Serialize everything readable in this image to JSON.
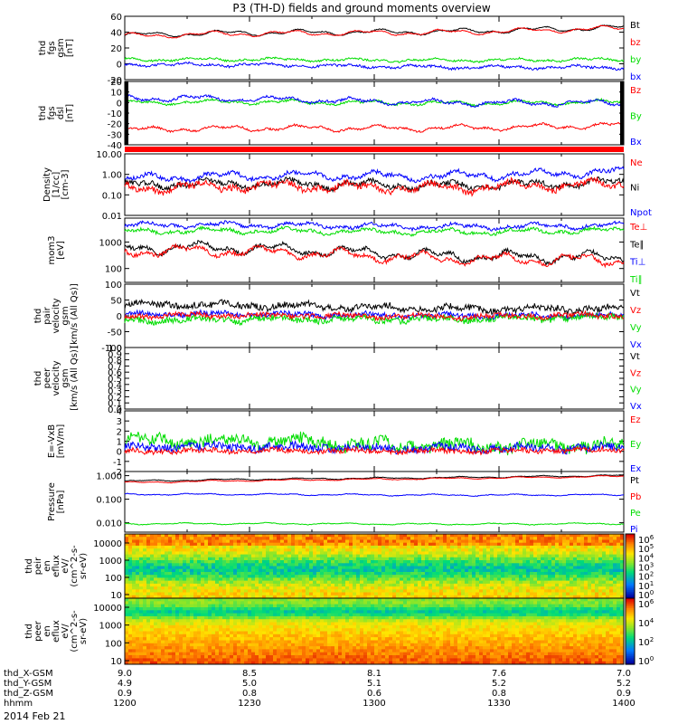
{
  "chart_data": {
    "type": "line",
    "title": "P3 (TH-D) fields and ground moments overview",
    "date_label": "2014 Feb 21",
    "x_range": [
      1200,
      1400
    ],
    "x_ticks": {
      "rows": [
        {
          "label": "thd_X-GSM",
          "values": [
            "9.0",
            "8.5",
            "8.1",
            "7.6",
            "7.0"
          ]
        },
        {
          "label": "thd_Y-GSM",
          "values": [
            "4.9",
            "5.0",
            "5.1",
            "5.2",
            "5.2"
          ]
        },
        {
          "label": "thd_Z-GSM",
          "values": [
            "0.9",
            "0.8",
            "0.6",
            "0.8",
            "0.9"
          ]
        },
        {
          "label": "hhmm",
          "values": [
            "1200",
            "1230",
            "1300",
            "1330",
            "1400"
          ]
        }
      ]
    },
    "panels": [
      {
        "id": "fgs_gsm",
        "ylabel": [
          "thd",
          "fgs",
          "gsm",
          "[nT]"
        ],
        "ylim": [
          -20,
          60
        ],
        "yticks": [
          "60",
          "40",
          "20",
          "0",
          "-20"
        ],
        "legend": [
          {
            "t": "Bt",
            "c": "#000000"
          },
          {
            "t": "bz",
            "c": "#ff0000"
          },
          {
            "t": "by",
            "c": "#00dd00"
          },
          {
            "t": "bx",
            "c": "#0000ff"
          }
        ],
        "series": [
          {
            "name": "Bt",
            "color": "#000000",
            "base": 36,
            "end": 45,
            "amp": 5,
            "noise": 0.6
          },
          {
            "name": "bz",
            "color": "#ff0000",
            "base": 35,
            "end": 44,
            "amp": 5,
            "noise": 0.6
          },
          {
            "name": "by",
            "color": "#00dd00",
            "base": 5,
            "end": 5,
            "amp": 3,
            "noise": 1.2
          },
          {
            "name": "bx",
            "color": "#0000ff",
            "base": -1,
            "end": -5,
            "amp": 3,
            "noise": 1.5
          }
        ]
      },
      {
        "id": "fgs_dsl",
        "ylabel": [
          "thd",
          "fgs",
          "dsl",
          "[nT]"
        ],
        "ylim": [
          -40,
          20
        ],
        "yticks": [
          "20",
          "10",
          "0",
          "-10",
          "-20",
          "-30",
          "-40"
        ],
        "legend": [
          {
            "t": "Bz",
            "c": "#ff0000"
          },
          {
            "t": "By",
            "c": "#00dd00"
          },
          {
            "t": "Bx",
            "c": "#0000ff"
          }
        ],
        "series": [
          {
            "name": "Bz",
            "color": "#ff0000",
            "base": -26,
            "end": -22,
            "amp": 4,
            "noise": 1.0
          },
          {
            "name": "By",
            "color": "#00dd00",
            "base": 0,
            "end": 0,
            "amp": 3,
            "noise": 1.0
          },
          {
            "name": "Bx",
            "color": "#0000ff",
            "base": 4,
            "end": -1,
            "amp": 4,
            "noise": 1.2
          }
        ]
      },
      {
        "id": "density",
        "ylabel": [
          "Density",
          "[1/cc]",
          "[cm-3]"
        ],
        "log": true,
        "ylim": [
          0.01,
          10
        ],
        "yticks": [
          "10.00",
          "1.00",
          "0.10",
          "0.01"
        ],
        "legend": [
          {
            "t": "Ne",
            "c": "#ff0000"
          },
          {
            "t": "Ni",
            "c": "#000000"
          },
          {
            "t": "Npot",
            "c": "#0000ff"
          }
        ],
        "series": [
          {
            "name": "Npot",
            "color": "#0000ff",
            "base": 0.6,
            "end": 1.2,
            "amp": 0.3,
            "noise": 0.2
          },
          {
            "name": "Ni",
            "color": "#000000",
            "base": 0.3,
            "end": 0.35,
            "amp": 0.3,
            "noise": 0.25
          },
          {
            "name": "Ne",
            "color": "#ff0000",
            "base": 0.2,
            "end": 0.3,
            "amp": 0.35,
            "noise": 0.3
          }
        ]
      },
      {
        "id": "temp",
        "ylabel": [
          "mom3",
          "[eV]"
        ],
        "log": true,
        "ylim": [
          30,
          8000
        ],
        "yticks": [
          "1000",
          "100"
        ],
        "legend": [
          {
            "t": "Te⊥",
            "c": "#ff0000"
          },
          {
            "t": "Te∥",
            "c": "#000000"
          },
          {
            "t": "Ti⊥",
            "c": "#0000ff"
          },
          {
            "t": "Ti∥",
            "c": "#00dd00"
          }
        ],
        "series": [
          {
            "name": "Ti⊥",
            "color": "#0000ff",
            "base": 4200,
            "end": 4000,
            "amp": 0.15,
            "noise": 0.12
          },
          {
            "name": "Ti∥",
            "color": "#00dd00",
            "base": 2500,
            "end": 2600,
            "amp": 0.15,
            "noise": 0.12
          },
          {
            "name": "Te∥",
            "color": "#000000",
            "base": 600,
            "end": 220,
            "amp": 0.3,
            "noise": 0.15
          },
          {
            "name": "Te⊥",
            "color": "#ff0000",
            "base": 450,
            "end": 180,
            "amp": 0.3,
            "noise": 0.15
          }
        ]
      },
      {
        "id": "pair_vel",
        "ylabel": [
          "thd",
          "pair",
          "velocity",
          "gsm",
          "[km/s (All Qs)]"
        ],
        "ylim": [
          -100,
          100
        ],
        "yticks": [
          "100",
          "50",
          "0",
          "-50",
          "-100"
        ],
        "legend": [
          {
            "t": "Vt",
            "c": "#000000"
          },
          {
            "t": "Vz",
            "c": "#ff0000"
          },
          {
            "t": "Vy",
            "c": "#00dd00"
          },
          {
            "t": "Vx",
            "c": "#0000ff"
          }
        ],
        "series": [
          {
            "name": "Vt",
            "color": "#000000",
            "base": 35,
            "end": 20,
            "amp": 12,
            "noise": 10
          },
          {
            "name": "Vx",
            "color": "#0000ff",
            "base": 5,
            "end": 0,
            "amp": 8,
            "noise": 8
          },
          {
            "name": "Vy",
            "color": "#00dd00",
            "base": -15,
            "end": -5,
            "amp": 10,
            "noise": 10
          },
          {
            "name": "Vz",
            "color": "#ff0000",
            "base": 0,
            "end": 0,
            "amp": 8,
            "noise": 8
          }
        ]
      },
      {
        "id": "peer_vel",
        "ylabel": [
          "thd",
          "peer",
          "velocity",
          "gsm",
          "[km/s (All Qs)]"
        ],
        "ylim": [
          0,
          1
        ],
        "yticks": [
          "1.0",
          "0.9",
          "0.8",
          "0.7",
          "0.6",
          "0.5",
          "0.4",
          "0.3",
          "0.2",
          "0.1",
          "0.0"
        ],
        "legend": [
          {
            "t": "Vt",
            "c": "#000000"
          },
          {
            "t": "Vz",
            "c": "#ff0000"
          },
          {
            "t": "Vy",
            "c": "#00dd00"
          },
          {
            "t": "Vx",
            "c": "#0000ff"
          }
        ],
        "series": []
      },
      {
        "id": "efield",
        "ylabel": [
          "E=-VxB",
          "[mV/m]"
        ],
        "ylim": [
          -2,
          4
        ],
        "yticks": [
          "4",
          "3",
          "2",
          "1",
          "0",
          "-1",
          "-2"
        ],
        "legend": [
          {
            "t": "Ez",
            "c": "#ff0000"
          },
          {
            "t": "Ey",
            "c": "#00dd00"
          },
          {
            "t": "Ex",
            "c": "#0000ff"
          }
        ],
        "series": [
          {
            "name": "Ey",
            "color": "#00dd00",
            "base": 1.0,
            "end": 0.5,
            "amp": 0.6,
            "noise": 0.6
          },
          {
            "name": "Ex",
            "color": "#0000ff",
            "base": 0.4,
            "end": 0.3,
            "amp": 0.3,
            "noise": 0.4
          },
          {
            "name": "Ez",
            "color": "#ff0000",
            "base": 0.0,
            "end": 0.1,
            "amp": 0.2,
            "noise": 0.25
          }
        ]
      },
      {
        "id": "pressure",
        "ylabel": [
          "Pressure",
          "[nPa]"
        ],
        "log": true,
        "ylim": [
          0.004,
          1.5
        ],
        "yticks": [
          "1.000",
          "0.100",
          "0.010"
        ],
        "legend": [
          {
            "t": "Pt",
            "c": "#000000"
          },
          {
            "t": "Pb",
            "c": "#ff0000"
          },
          {
            "t": "Pe",
            "c": "#00dd00"
          },
          {
            "t": "Pi",
            "c": "#0000ff"
          }
        ],
        "series": [
          {
            "name": "Pt",
            "color": "#000000",
            "base": 0.58,
            "end": 1.0,
            "amp": 0.05,
            "noise": 0.02
          },
          {
            "name": "Pb",
            "color": "#ff0000",
            "base": 0.5,
            "end": 0.92,
            "amp": 0.05,
            "noise": 0.02
          },
          {
            "name": "Pi",
            "color": "#0000ff",
            "base": 0.16,
            "end": 0.15,
            "amp": 0.05,
            "noise": 0.03
          },
          {
            "name": "Pe",
            "color": "#00dd00",
            "base": 0.009,
            "end": 0.009,
            "amp": 0.05,
            "noise": 0.03
          }
        ]
      }
    ],
    "spectrograms": [
      {
        "id": "ion_spec",
        "ylabel": [
          "thd",
          "peir",
          "en",
          "eflux",
          "eV/",
          "(cm^2-s-",
          "sr-eV)"
        ],
        "yticks": [
          "10000",
          "1000",
          "100",
          "10"
        ],
        "cbar_ticks": [
          "10^6",
          "10^5",
          "10^4",
          "10^3",
          "10^2",
          "10^1",
          "10^0"
        ]
      },
      {
        "id": "ele_spec",
        "ylabel": [
          "thd",
          "peer",
          "en",
          "eflux",
          "eV/",
          "(cm^2-s-",
          "sr-eV)"
        ],
        "yticks": [
          "10000",
          "1000",
          "100",
          "10"
        ],
        "cbar_ticks": [
          "10^6",
          "10^4",
          "10^2",
          "10^0"
        ]
      }
    ]
  }
}
